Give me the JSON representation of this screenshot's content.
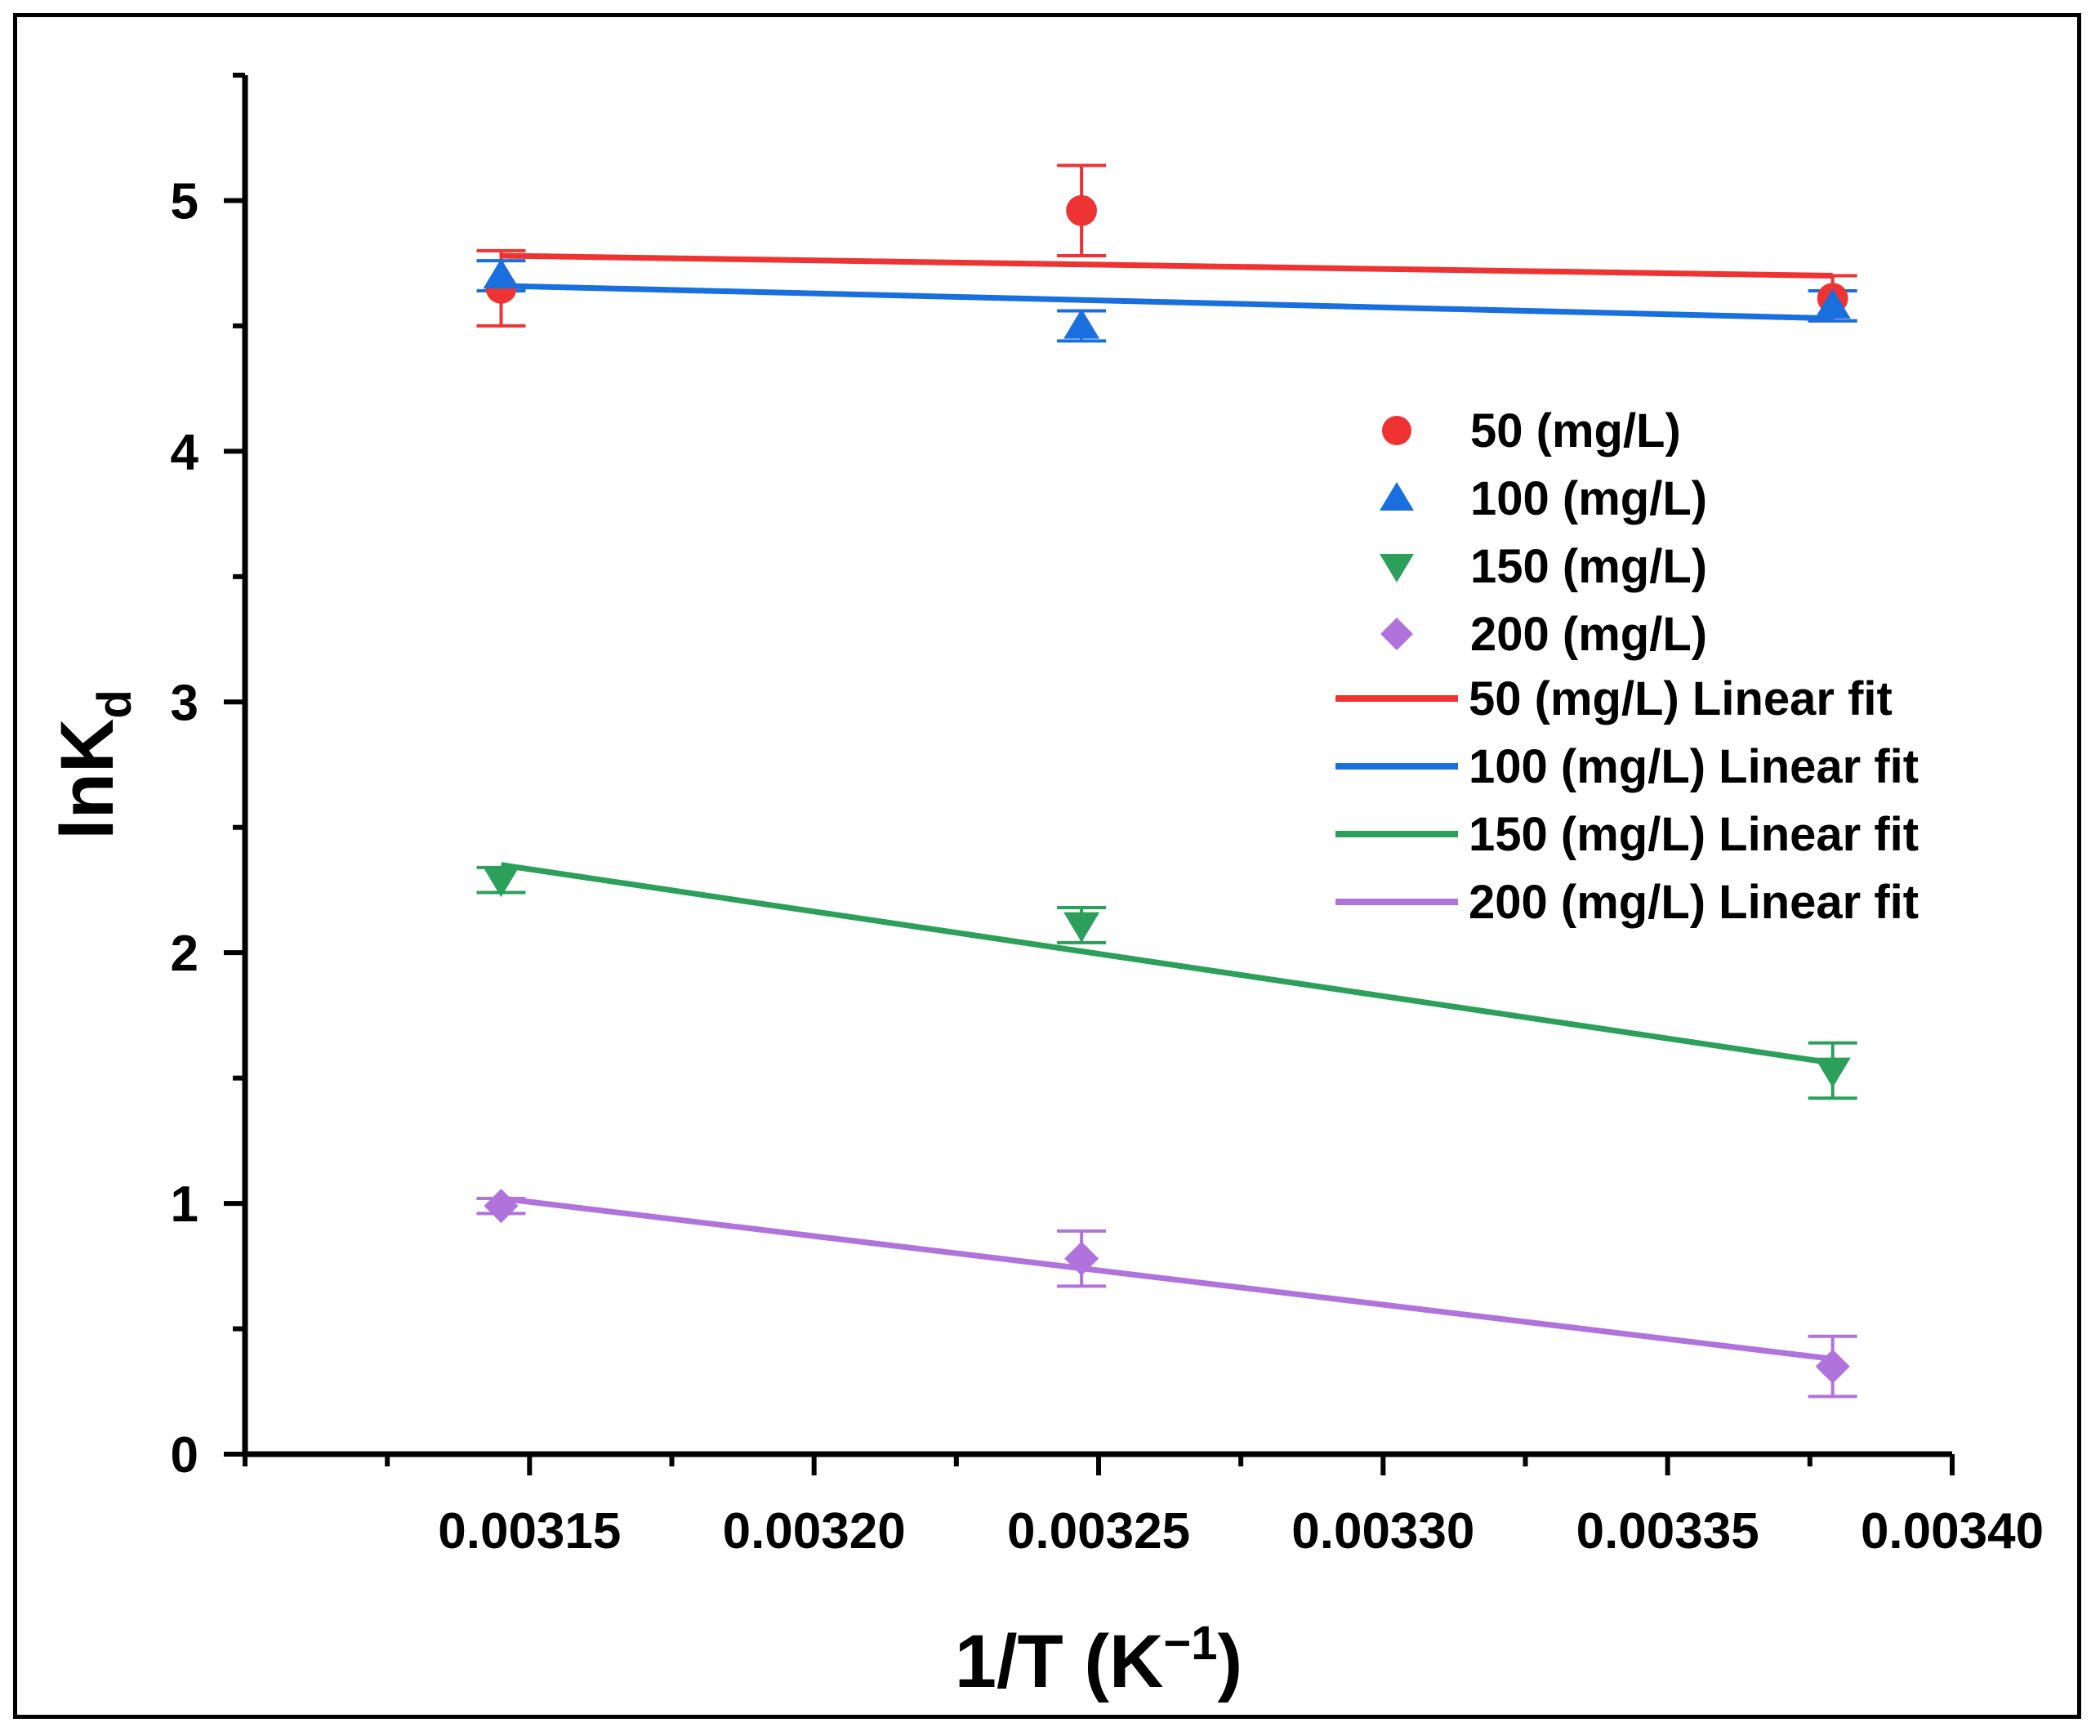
{
  "chart_data": {
    "type": "scatter",
    "title": "",
    "xlabel": "1/T (K⁻¹)",
    "xlabel_parts": {
      "base": "1/T (K",
      "sup": "−1",
      "close": ")"
    },
    "ylabel": "lnKd",
    "ylabel_parts": {
      "base": "lnK",
      "sub": "d"
    },
    "xlim": [
      0.0031,
      0.0034
    ],
    "ylim": [
      0,
      5.5
    ],
    "xticks": [
      0.00315,
      0.0032,
      0.00325,
      0.0033,
      0.00335,
      0.0034
    ],
    "xtick_labels": [
      "0.00315",
      "0.00320",
      "0.00325",
      "0.00330",
      "0.00335",
      "0.00340"
    ],
    "yticks": [
      0,
      1,
      2,
      3,
      4,
      5
    ],
    "ytick_labels": [
      "0",
      "1",
      "2",
      "3",
      "4",
      "5"
    ],
    "grid": false,
    "legend_position": "center-right",
    "x": [
      0.003145,
      0.003247,
      0.003379
    ],
    "series": [
      {
        "name": "50 (mg/L)",
        "fit_name": "50 (mg/L) Linear fit",
        "marker": "circle",
        "color": "#ee3333",
        "y": [
          4.65,
          4.96,
          4.61
        ],
        "err": [
          0.15,
          0.18,
          0.09
        ],
        "fit": [
          4.78,
          4.7
        ]
      },
      {
        "name": "100 (mg/L)",
        "fit_name": "100 (mg/L) Linear fit",
        "marker": "triangle-up",
        "color": "#1a6fdf",
        "y": [
          4.7,
          4.5,
          4.58
        ],
        "err": [
          0.06,
          0.06,
          0.06
        ],
        "fit": [
          4.66,
          4.53
        ]
      },
      {
        "name": "150 (mg/L)",
        "fit_name": "150 (mg/L) Linear fit",
        "marker": "triangle-down",
        "color": "#2ca05a",
        "y": [
          2.29,
          2.11,
          1.53
        ],
        "err": [
          0.05,
          0.07,
          0.11
        ],
        "fit": [
          2.35,
          1.56
        ]
      },
      {
        "name": "200 (mg/L)",
        "fit_name": "200 (mg/L) Linear fit",
        "marker": "diamond",
        "color": "#b073db",
        "y": [
          0.99,
          0.78,
          0.35
        ],
        "err": [
          0.03,
          0.11,
          0.12
        ],
        "fit": [
          1.02,
          0.38
        ]
      }
    ]
  }
}
